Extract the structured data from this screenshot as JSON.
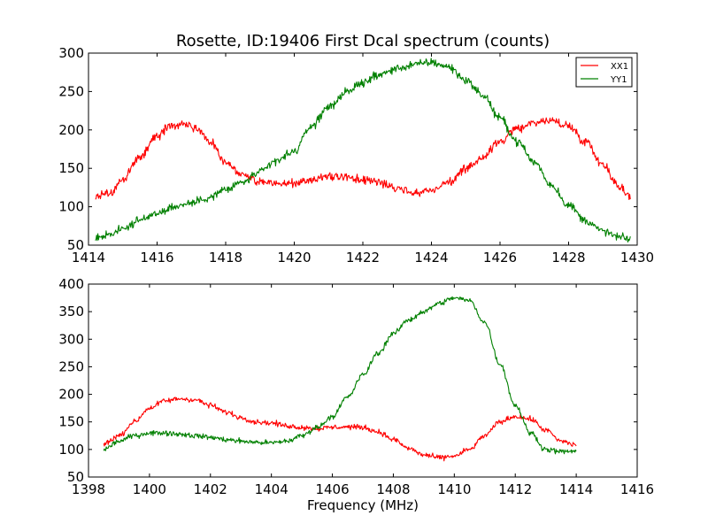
{
  "chart_data": [
    {
      "type": "line",
      "title": "Rosette, ID:19406 First Dcal spectrum (counts)",
      "xlabel": "",
      "ylabel": "",
      "xlim": [
        1414,
        1430
      ],
      "ylim": [
        50,
        300
      ],
      "xticks": [
        1414,
        1416,
        1418,
        1420,
        1422,
        1424,
        1426,
        1428,
        1430
      ],
      "yticks": [
        50,
        100,
        150,
        200,
        250,
        300
      ],
      "grid": false,
      "legend": "top-right",
      "noise": 8,
      "series": [
        {
          "name": "XX1",
          "color": "#ff0000",
          "x": [
            1414.2,
            1414.6,
            1415.0,
            1415.5,
            1416.0,
            1416.4,
            1416.8,
            1417.2,
            1417.6,
            1418.0,
            1418.5,
            1419.0,
            1419.5,
            1420.0,
            1420.5,
            1421.0,
            1421.5,
            1422.0,
            1422.5,
            1423.0,
            1423.5,
            1424.0,
            1424.5,
            1425.0,
            1425.5,
            1426.0,
            1426.5,
            1427.0,
            1427.5,
            1428.0,
            1428.5,
            1429.0,
            1429.5,
            1429.8
          ],
          "y": [
            112,
            118,
            135,
            165,
            192,
            205,
            208,
            200,
            183,
            158,
            142,
            132,
            130,
            130,
            135,
            140,
            138,
            135,
            132,
            125,
            118,
            122,
            132,
            148,
            165,
            185,
            202,
            210,
            212,
            205,
            185,
            155,
            125,
            112
          ]
        },
        {
          "name": "YY1",
          "color": "#008000",
          "x": [
            1414.2,
            1414.6,
            1415.0,
            1415.5,
            1416.0,
            1416.5,
            1417.0,
            1417.5,
            1418.0,
            1418.5,
            1419.0,
            1419.5,
            1420.0,
            1420.5,
            1421.0,
            1421.5,
            1422.0,
            1422.5,
            1423.0,
            1423.5,
            1424.0,
            1424.5,
            1425.0,
            1425.5,
            1426.0,
            1426.5,
            1427.0,
            1427.5,
            1428.0,
            1428.5,
            1429.0,
            1429.5,
            1429.8
          ],
          "y": [
            60,
            64,
            72,
            82,
            92,
            100,
            105,
            112,
            122,
            132,
            145,
            160,
            172,
            205,
            230,
            248,
            262,
            272,
            280,
            285,
            288,
            282,
            265,
            245,
            215,
            185,
            158,
            128,
            102,
            82,
            68,
            60,
            58
          ]
        }
      ]
    },
    {
      "type": "line",
      "title": "",
      "xlabel": "Frequency (MHz)",
      "ylabel": "",
      "xlim": [
        1398,
        1416
      ],
      "ylim": [
        50,
        400
      ],
      "xticks": [
        1398,
        1400,
        1402,
        1404,
        1406,
        1408,
        1410,
        1412,
        1414,
        1416
      ],
      "yticks": [
        50,
        100,
        150,
        200,
        250,
        300,
        350,
        400
      ],
      "grid": false,
      "noise": 7,
      "series": [
        {
          "name": "XX1",
          "color": "#ff0000",
          "x": [
            1398.5,
            1399.0,
            1399.5,
            1400.0,
            1400.5,
            1401.0,
            1401.5,
            1402.0,
            1402.5,
            1403.0,
            1403.5,
            1404.0,
            1404.5,
            1405.0,
            1405.5,
            1406.0,
            1406.5,
            1407.0,
            1407.5,
            1408.0,
            1408.5,
            1409.0,
            1409.5,
            1410.0,
            1410.5,
            1411.0,
            1411.5,
            1412.0,
            1412.5,
            1413.0,
            1413.5,
            1414.0
          ],
          "y": [
            110,
            125,
            150,
            175,
            188,
            192,
            190,
            180,
            168,
            158,
            150,
            148,
            143,
            140,
            138,
            140,
            141,
            140,
            132,
            118,
            102,
            90,
            85,
            88,
            100,
            125,
            150,
            160,
            155,
            135,
            115,
            108
          ]
        },
        {
          "name": "YY1",
          "color": "#008000",
          "x": [
            1398.5,
            1399.0,
            1399.5,
            1400.0,
            1400.5,
            1401.0,
            1401.5,
            1402.0,
            1402.5,
            1403.0,
            1403.5,
            1404.0,
            1404.5,
            1405.0,
            1405.5,
            1406.0,
            1406.5,
            1407.0,
            1407.5,
            1408.0,
            1408.5,
            1409.0,
            1409.5,
            1410.0,
            1410.5,
            1411.0,
            1411.5,
            1412.0,
            1412.5,
            1413.0,
            1413.5,
            1414.0
          ],
          "y": [
            100,
            115,
            125,
            130,
            130,
            128,
            125,
            122,
            118,
            115,
            113,
            112,
            115,
            125,
            140,
            160,
            195,
            235,
            275,
            310,
            335,
            350,
            365,
            375,
            370,
            330,
            255,
            180,
            130,
            100,
            96,
            97
          ]
        }
      ]
    }
  ]
}
